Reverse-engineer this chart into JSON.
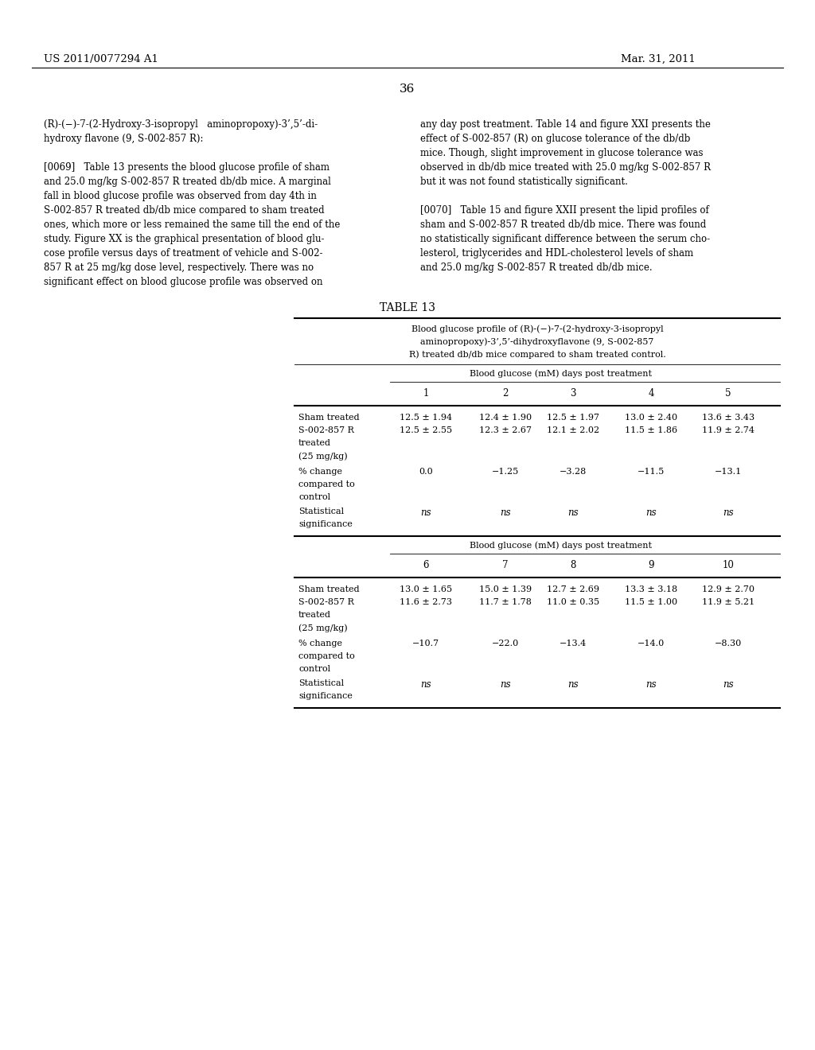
{
  "patent_number": "US 2011/0077294 A1",
  "patent_date": "Mar. 31, 2011",
  "page_number": "36",
  "background_color": "#ffffff",
  "text_color": "#000000",
  "col_days_1": [
    "1",
    "2",
    "3",
    "4",
    "5"
  ],
  "col_days_2": [
    "6",
    "7",
    "8",
    "9",
    "10"
  ],
  "data_part1": {
    "sham": [
      "12.5 ± 1.94",
      "12.4 ± 1.90",
      "12.5 ± 1.97",
      "13.0 ± 2.40",
      "13.6 ± 3.43"
    ],
    "drug": [
      "12.5 ± 2.55",
      "12.3 ± 2.67",
      "12.1 ± 2.02",
      "11.5 ± 1.86",
      "11.9 ± 2.74"
    ],
    "pct": [
      "0.0",
      "−1.25",
      "−3.28",
      "−11.5",
      "−13.1"
    ],
    "stat": [
      "ns",
      "ns",
      "ns",
      "ns",
      "ns"
    ]
  },
  "data_part2": {
    "sham": [
      "13.0 ± 1.65",
      "15.0 ± 1.39",
      "12.7 ± 2.69",
      "13.3 ± 3.18",
      "12.9 ± 2.70"
    ],
    "drug": [
      "11.6 ± 2.73",
      "11.7 ± 1.78",
      "11.0 ± 0.35",
      "11.5 ± 1.00",
      "11.9 ± 5.21"
    ],
    "pct": [
      "−10.7",
      "−22.0",
      "−13.4",
      "−14.0",
      "−8.30"
    ],
    "stat": [
      "ns",
      "ns",
      "ns",
      "ns",
      "ns"
    ]
  }
}
